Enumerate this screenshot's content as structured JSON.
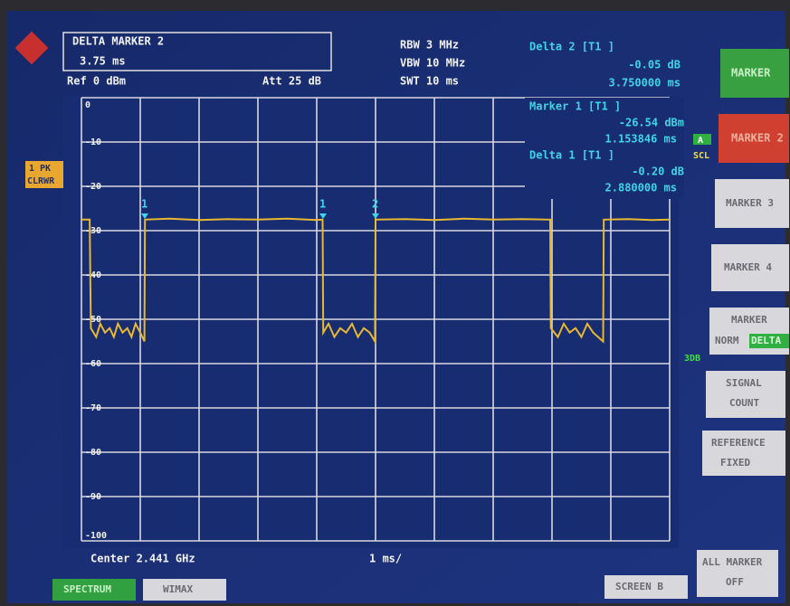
{
  "chart_data": {
    "type": "line",
    "xlim": [
      0,
      10
    ],
    "xticks": [
      0,
      1,
      2,
      3,
      4,
      5,
      6,
      7,
      8,
      9,
      10
    ],
    "ylim": [
      -100,
      0
    ],
    "yticks": [
      0,
      -10,
      -20,
      -30,
      -40,
      -50,
      -60,
      -70,
      -80,
      -90,
      -100
    ],
    "grid": true,
    "series": [
      {
        "name": "1 PK",
        "color": "#e8b830",
        "x": [
          0,
          0.14,
          0.16,
          0.25,
          0.32,
          0.4,
          0.48,
          0.55,
          0.62,
          0.7,
          0.78,
          0.85,
          0.92,
          1.0,
          1.07,
          1.08,
          1.5,
          2.0,
          2.5,
          3.0,
          3.5,
          4.0,
          4.1,
          4.11,
          4.2,
          4.3,
          4.4,
          4.5,
          4.6,
          4.7,
          4.8,
          4.9,
          4.99,
          5.0,
          5.5,
          6.0,
          6.5,
          7.0,
          7.5,
          7.97,
          7.98,
          8.1,
          8.2,
          8.3,
          8.4,
          8.5,
          8.6,
          8.7,
          8.87,
          8.88,
          9.3,
          9.7,
          10
        ],
        "values": [
          -27.5,
          -27.5,
          -52,
          -54,
          -51,
          -53,
          -52,
          -54,
          -51,
          -53,
          -52,
          -54,
          -51,
          -53,
          -55,
          -27.5,
          -27.3,
          -27.6,
          -27.4,
          -27.5,
          -27.3,
          -27.6,
          -27.5,
          -53,
          -51,
          -54,
          -52,
          -53,
          -51,
          -54,
          -52,
          -53,
          -55,
          -27.5,
          -27.4,
          -27.6,
          -27.3,
          -27.5,
          -27.4,
          -27.5,
          -52,
          -54,
          -51,
          -53,
          -52,
          -54,
          -51,
          -53,
          -55,
          -27.5,
          -27.4,
          -27.6,
          -27.5
        ]
      }
    ]
  },
  "screen": {
    "header": {
      "title": "DELTA MARKER 2",
      "value": "3.75 ms",
      "ref": "Ref  0 dBm",
      "att": "Att  25 dB",
      "rbw": "RBW 3 MHz",
      "vbw": "VBW 10 MHz",
      "swt": "SWT 10 ms"
    },
    "readouts": [
      {
        "label": "Delta 2 [T1 ]",
        "level": "-0.05 dB",
        "time": "3.750000 ms"
      },
      {
        "label": "Marker 1 [T1 ]",
        "level": "-26.54 dBm",
        "time": "1.153846 ms"
      },
      {
        "label": "Delta 1 [T1 ]",
        "level": "-0.20 dB",
        "time": "2.880000 ms"
      }
    ],
    "trace_labels": [
      "1 PK",
      "CLRWR"
    ],
    "side_labels": [
      "A",
      "SCL",
      "3DB"
    ],
    "marker_labels": [
      "1",
      "1",
      "2"
    ],
    "footer": {
      "center": "Center 2.441 GHz",
      "span": "1 ms/"
    },
    "softkeys": [
      [
        "MARKER"
      ],
      [
        "MARKER 2"
      ],
      [
        "MARKER 3"
      ],
      [
        "MARKER 4"
      ],
      [
        "MARKER",
        "NORM",
        "DELTA"
      ],
      [
        "SIGNAL",
        "COUNT"
      ],
      [
        "REFERENCE",
        "FIXED"
      ],
      [
        "ALL MARKER",
        "OFF"
      ]
    ],
    "tabs": [
      "SPECTRUM",
      "WIMAX",
      "SCREEN B"
    ]
  }
}
